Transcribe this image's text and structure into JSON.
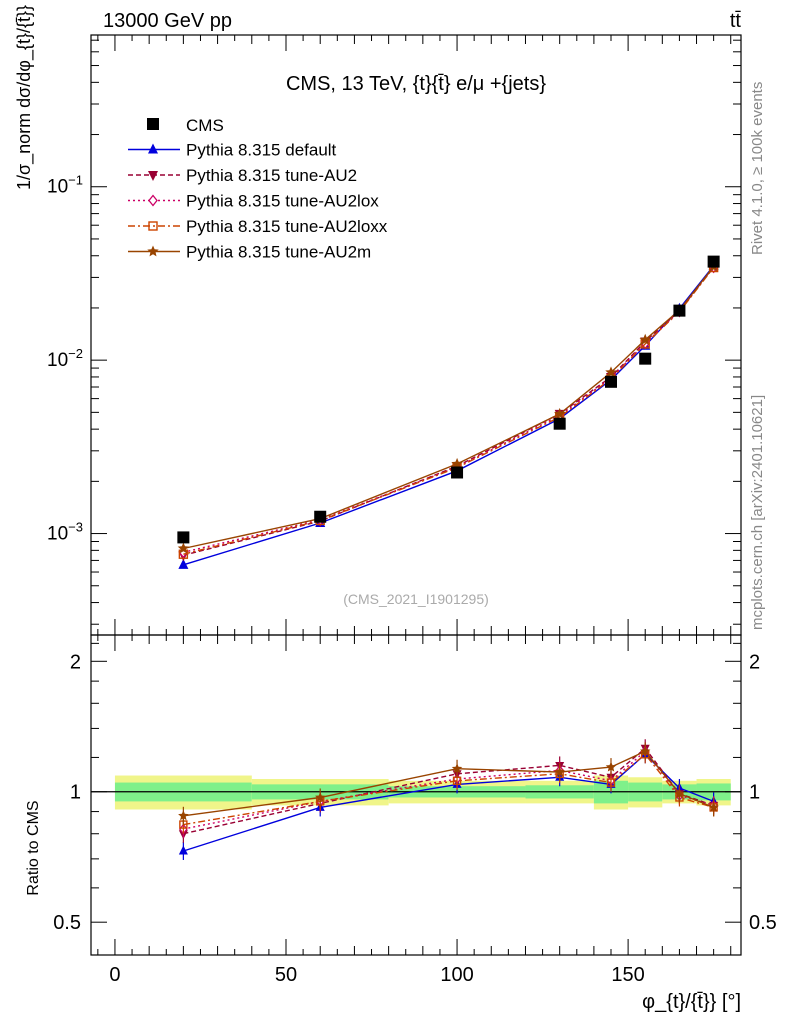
{
  "header": {
    "left": "13000 GeV pp",
    "right": "tt̄"
  },
  "title": "CMS, 13 TeV, {t}{t̄} e/μ +{jets}",
  "watermark": "(CMS_2021_I1901295)",
  "side_text": {
    "rivet": "Rivet 4.1.0, ≥ 100k events",
    "site": "mcplots.cern.ch [arXiv:2401.10621]"
  },
  "chart_data": {
    "type": "line",
    "title": "CMS, 13 TeV, {t}{t̄} e/μ +{jets}",
    "xlabel": "φ_{t}/{t̄}} [°]",
    "ylabel": "1/σ_norm dσ/dφ_{t}/{t̄}}",
    "ratio_ylabel": "Ratio to CMS",
    "yscale": "log",
    "xlim": [
      -7,
      183
    ],
    "ylim": [
      0.00026,
      0.75
    ],
    "ratio_ylim": [
      0.42,
      2.3
    ],
    "x_ticks": [
      0,
      50,
      100,
      150
    ],
    "y_ticks": [
      {
        "v": 0.001,
        "b": "10",
        "e": "−3"
      },
      {
        "v": 0.01,
        "b": "10",
        "e": "−2"
      },
      {
        "v": 0.1,
        "b": "10",
        "e": "−1"
      }
    ],
    "ratio_ticks": [
      0.5,
      1,
      2
    ],
    "legend_position": "top-left",
    "x": [
      20,
      60,
      100,
      130,
      145,
      155,
      165,
      175
    ],
    "data": {
      "name": "CMS",
      "values": [
        0.00095,
        0.00125,
        0.00225,
        0.0043,
        0.0075,
        0.0102,
        0.0193,
        0.037
      ]
    },
    "series": [
      {
        "name": "Pythia 8.315 default",
        "color": "#0000dd",
        "dash": "",
        "marker": "triangle",
        "values": [
          0.00066,
          0.00115,
          0.0023,
          0.0046,
          0.0077,
          0.0121,
          0.0198,
          0.035
        ],
        "ratio": [
          0.73,
          0.92,
          1.04,
          1.08,
          1.04,
          1.22,
          1.02,
          0.95
        ]
      },
      {
        "name": "Pythia 8.315 tune-AU2",
        "color": "#990033",
        "dash": "5,3",
        "marker": "triangle-down",
        "values": [
          0.00075,
          0.00118,
          0.00245,
          0.0049,
          0.008,
          0.0128,
          0.0192,
          0.0345
        ],
        "ratio": [
          0.8,
          0.94,
          1.1,
          1.15,
          1.08,
          1.26,
          0.99,
          0.93
        ]
      },
      {
        "name": "Pythia 8.315 tune-AU2lox",
        "color": "#cc0066",
        "dash": "2,3",
        "marker": "diamond",
        "values": [
          0.00078,
          0.0012,
          0.00242,
          0.0048,
          0.0079,
          0.0125,
          0.0191,
          0.0343
        ],
        "ratio": [
          0.82,
          0.95,
          1.07,
          1.12,
          1.06,
          1.24,
          0.98,
          0.93
        ]
      },
      {
        "name": "Pythia 8.315 tune-AU2loxx",
        "color": "#cc4400",
        "dash": "7,3,2,3",
        "marker": "square-open",
        "values": [
          0.00076,
          0.00119,
          0.0024,
          0.0047,
          0.0078,
          0.0124,
          0.019,
          0.0342
        ],
        "ratio": [
          0.84,
          0.95,
          1.06,
          1.1,
          1.05,
          1.22,
          0.97,
          0.92
        ]
      },
      {
        "name": "Pythia 8.315 tune-AU2m",
        "color": "#994400",
        "dash": "",
        "marker": "star",
        "values": [
          0.00082,
          0.00122,
          0.00252,
          0.0049,
          0.0085,
          0.0131,
          0.0194,
          0.0346
        ],
        "ratio": [
          0.88,
          0.97,
          1.13,
          1.11,
          1.14,
          1.24,
          0.99,
          0.92
        ]
      }
    ],
    "band_edges": [
      0,
      40,
      80,
      120,
      140,
      150,
      160,
      170,
      180
    ],
    "band_green": [
      0.05,
      0.04,
      0.03,
      0.035,
      0.06,
      0.05,
      0.04,
      0.045
    ],
    "band_yellow": [
      0.09,
      0.07,
      0.06,
      0.06,
      0.09,
      0.08,
      0.06,
      0.07
    ]
  }
}
